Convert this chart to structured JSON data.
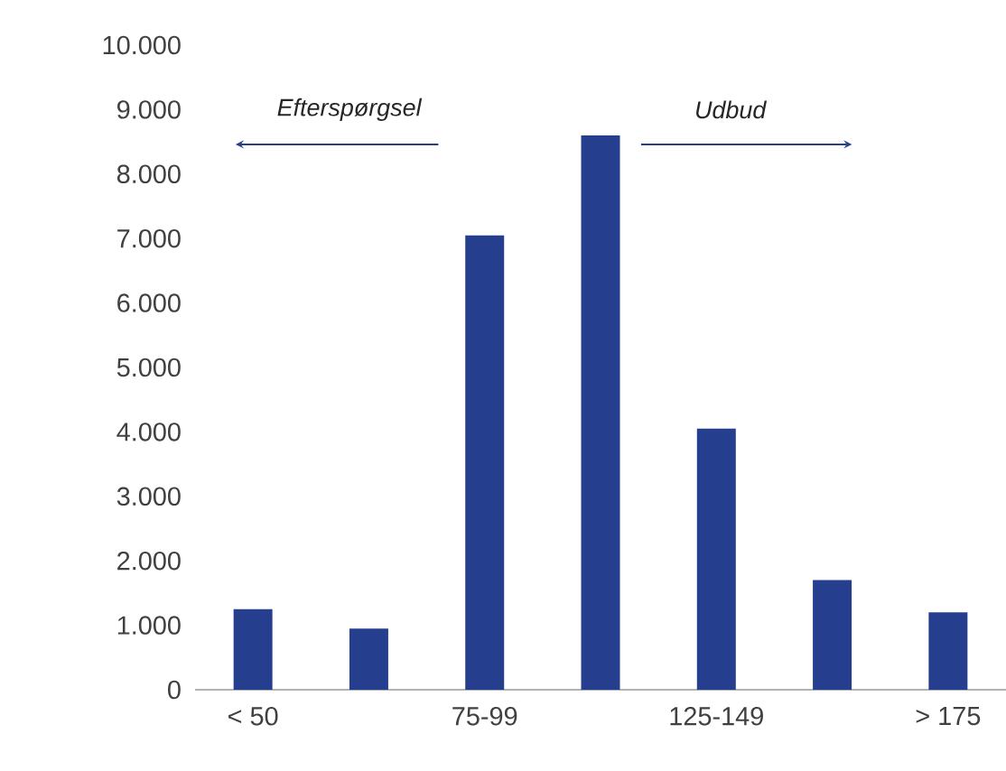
{
  "chart_data": {
    "type": "bar",
    "categories": [
      "< 50",
      null,
      "75-99",
      null,
      "125-149",
      null,
      "> 175"
    ],
    "values": [
      1250,
      950,
      7050,
      8600,
      4050,
      1700,
      1200
    ],
    "color": "#253f8e",
    "ylim": [
      0,
      10000
    ],
    "yticks": [
      {
        "value": 0,
        "label": "0"
      },
      {
        "value": 1000,
        "label": "1.000"
      },
      {
        "value": 2000,
        "label": "2.000"
      },
      {
        "value": 3000,
        "label": "3.000"
      },
      {
        "value": 4000,
        "label": "4.000"
      },
      {
        "value": 5000,
        "label": "5.000"
      },
      {
        "value": 6000,
        "label": "6.000"
      },
      {
        "value": 7000,
        "label": "7.000"
      },
      {
        "value": 8000,
        "label": "8.000"
      },
      {
        "value": 9000,
        "label": "9.000"
      },
      {
        "value": 10000,
        "label": "10.000"
      }
    ],
    "annotations": [
      "Efterspørgsel",
      "Udbud"
    ]
  }
}
